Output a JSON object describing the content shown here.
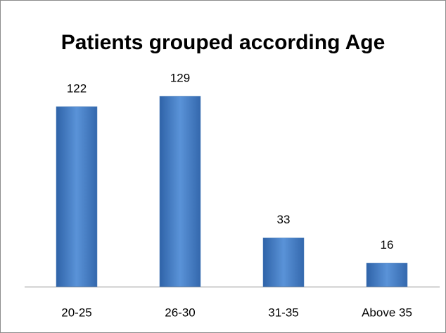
{
  "chart_data": {
    "type": "bar",
    "title": "Patients grouped according Age",
    "categories": [
      "20-25",
      "26-30",
      "31-35",
      "Above 35"
    ],
    "values": [
      122,
      129,
      33,
      16
    ],
    "color": "#4a7ebb"
  }
}
